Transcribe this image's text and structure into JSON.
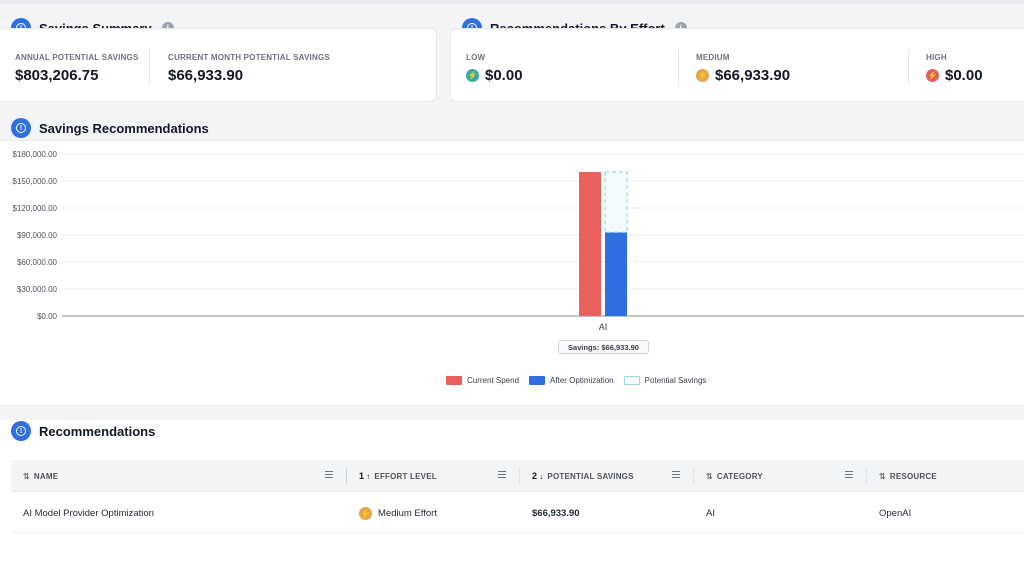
{
  "savings_summary": {
    "title": "Savings Summary",
    "annual_label": "ANNUAL POTENTIAL SAVINGS",
    "annual_value": "$803,206.75",
    "month_label": "CURRENT MONTH POTENTIAL SAVINGS",
    "month_value": "$66,933.90"
  },
  "effort": {
    "title": "Recommendations By Effort",
    "items": [
      {
        "label": "LOW",
        "value": "$0.00",
        "color": "#3aa99f",
        "icon": "bolt-icon"
      },
      {
        "label": "MEDIUM",
        "value": "$66,933.90",
        "color": "#e3a64a",
        "icon": "bolt-icon"
      },
      {
        "label": "HIGH",
        "value": "$0.00",
        "color": "#e35d5d",
        "icon": "bolt-icon"
      }
    ]
  },
  "savings_chart": {
    "title": "Savings Recommendations",
    "tooltip": "Savings: $66,933.90",
    "legend": {
      "current": "Current Spend",
      "after": "After Optimization",
      "potential": "Potential Savings"
    }
  },
  "chart_data": {
    "type": "bar",
    "categories": [
      "AI"
    ],
    "series": [
      {
        "name": "Current Spend",
        "values": [
          160000
        ],
        "color": "#e8615d"
      },
      {
        "name": "After Optimization",
        "values": [
          93066.1
        ],
        "color": "#2f6fe0"
      },
      {
        "name": "Potential Savings",
        "values": [
          66933.9
        ],
        "color": "#9fd6de"
      }
    ],
    "yticks": [
      "$0.00",
      "$30,000.00",
      "$60,000.00",
      "$90,000.00",
      "$120,000.00",
      "$150,000.00",
      "$180,000.00"
    ],
    "ylim": [
      0,
      180000
    ]
  },
  "recommendations": {
    "title": "Recommendations",
    "columns": [
      {
        "label": "NAME",
        "sort": "⇅",
        "num": ""
      },
      {
        "label": "EFFORT LEVEL",
        "sort": "↑",
        "num": "1"
      },
      {
        "label": "POTENTIAL SAVINGS",
        "sort": "↓",
        "num": "2"
      },
      {
        "label": "CATEGORY",
        "sort": "⇅",
        "num": ""
      },
      {
        "label": "RESOURCE",
        "sort": "⇅",
        "num": ""
      }
    ],
    "rows": [
      {
        "name": "AI Model Provider Optimization",
        "effort": "Medium Effort",
        "savings": "$66,933.90",
        "category": "AI",
        "resource": "OpenAI"
      }
    ]
  }
}
